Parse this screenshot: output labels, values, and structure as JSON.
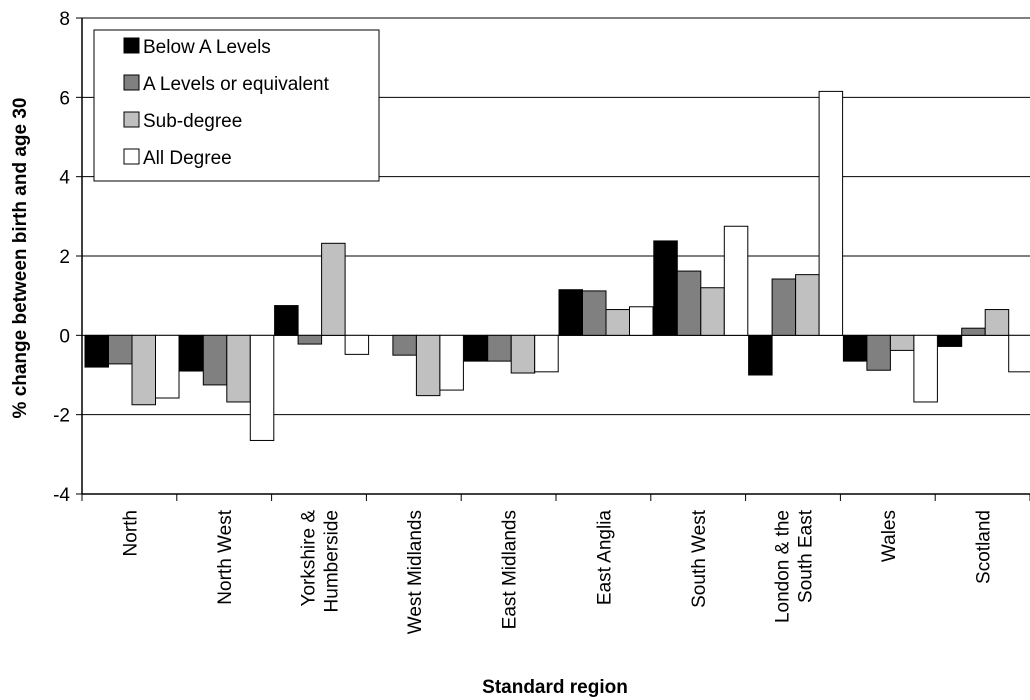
{
  "chart_data": {
    "type": "bar",
    "title": "",
    "xlabel": "Standard region",
    "ylabel": "% change between birth and age 30",
    "ylim": [
      -4,
      8
    ],
    "yticks": [
      -4,
      -2,
      0,
      2,
      4,
      6,
      8
    ],
    "grid": true,
    "legend_position": "top-left",
    "categories": [
      [
        "North"
      ],
      [
        "North West"
      ],
      [
        "Yorkshire &",
        "Humberside"
      ],
      [
        "West Midlands"
      ],
      [
        "East Midlands"
      ],
      [
        "East Anglia"
      ],
      [
        "South West"
      ],
      [
        "London & the",
        "South East"
      ],
      [
        "Wales"
      ],
      [
        "Scotland"
      ]
    ],
    "series": [
      {
        "name": "Below A Levels",
        "color": "#000000",
        "values": [
          -0.8,
          -0.9,
          0.75,
          0.0,
          -0.65,
          1.15,
          2.38,
          -1.0,
          -0.65,
          -0.28
        ]
      },
      {
        "name": "A Levels or equivalent",
        "color": "#808080",
        "values": [
          -0.72,
          -1.25,
          -0.22,
          -0.5,
          -0.65,
          1.12,
          1.62,
          1.42,
          -0.88,
          0.18
        ]
      },
      {
        "name": "Sub-degree",
        "color": "#c0c0c0",
        "values": [
          -1.75,
          -1.68,
          2.32,
          -1.52,
          -0.95,
          0.65,
          1.2,
          1.53,
          -0.38,
          0.65
        ]
      },
      {
        "name": "All Degree",
        "color": "#ffffff",
        "values": [
          -1.58,
          -2.65,
          -0.48,
          -1.38,
          -0.92,
          0.72,
          2.75,
          6.15,
          -1.68,
          -0.92
        ]
      }
    ]
  }
}
